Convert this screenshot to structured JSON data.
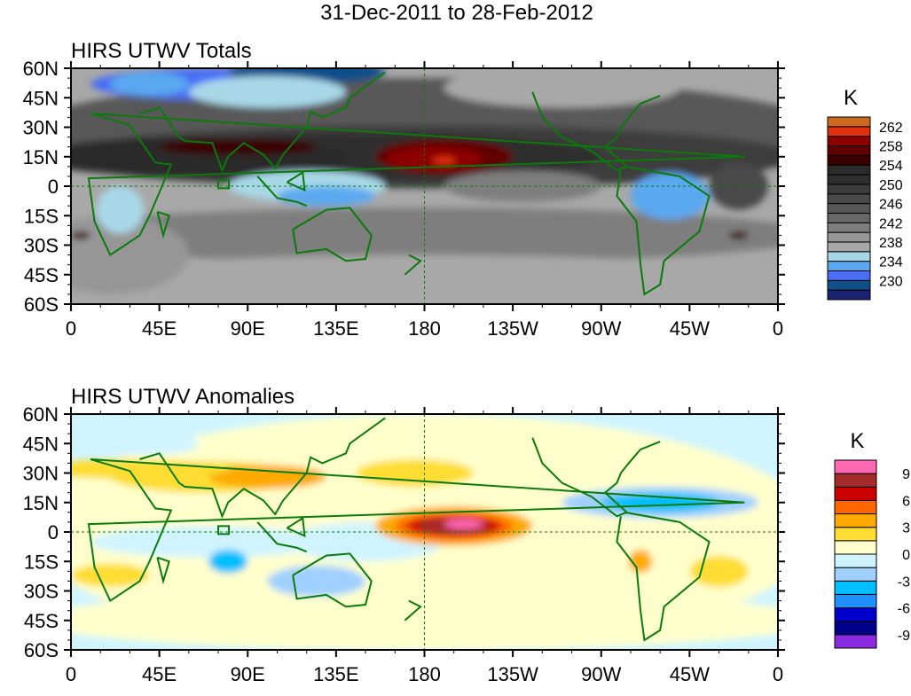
{
  "chart_data": [
    {
      "type": "heatmap",
      "title": "31-Dec-2011 to 28-Feb-2012",
      "panel_title": "HIRS UTWV Totals",
      "x_ticks": [
        "0",
        "45E",
        "90E",
        "135E",
        "180",
        "135W",
        "90W",
        "45W",
        "0"
      ],
      "y_ticks": [
        "60N",
        "45N",
        "30N",
        "15N",
        "0",
        "15S",
        "30S",
        "45S",
        "60S"
      ],
      "xlim_deg_east": [
        0,
        360
      ],
      "ylim_deg": [
        -60,
        60
      ],
      "colorbar": {
        "unit": "K",
        "levels": [
          230,
          232,
          234,
          236,
          238,
          240,
          242,
          244,
          246,
          248,
          250,
          252,
          254,
          256,
          258,
          260,
          262
        ],
        "labels": [
          "262",
          "258",
          "254",
          "250",
          "246",
          "242",
          "238",
          "234",
          "230"
        ],
        "colors": [
          "#1b2370",
          "#10508a",
          "#4a6ef5",
          "#5aa8f0",
          "#a8d8e8",
          "#a8a8a8",
          "#969696",
          "#7e7e7e",
          "#686868",
          "#585858",
          "#4a4a4a",
          "#3c3c3c",
          "#2e2e2e",
          "#2a2a2a",
          "#3a0000",
          "#600000",
          "#8c0000",
          "#e03010",
          "#cc6a20"
        ]
      }
    },
    {
      "type": "heatmap",
      "panel_title": "HIRS UTWV Anomalies",
      "x_ticks": [
        "0",
        "45E",
        "90E",
        "135E",
        "180",
        "135W",
        "90W",
        "45W",
        "0"
      ],
      "y_ticks": [
        "60N",
        "45N",
        "30N",
        "15N",
        "0",
        "15S",
        "30S",
        "45S",
        "60S"
      ],
      "xlim_deg_east": [
        0,
        360
      ],
      "ylim_deg": [
        -60,
        60
      ],
      "colorbar": {
        "unit": "K",
        "levels": [
          -9,
          -7.5,
          -6,
          -4.5,
          -3,
          -1.5,
          0,
          1.5,
          3,
          4.5,
          6,
          7.5,
          9
        ],
        "labels": [
          "9",
          "6",
          "3",
          "0",
          "-3",
          "-6",
          "-9"
        ],
        "colors": [
          "#8a2be2",
          "#00008b",
          "#0000cd",
          "#1e90ff",
          "#00bfff",
          "#a0d0ff",
          "#d0f4ff",
          "#ffffcc",
          "#ffdd33",
          "#ffaa00",
          "#ff6600",
          "#cc0000",
          "#a52a2a",
          "#ff69b4"
        ]
      }
    }
  ]
}
